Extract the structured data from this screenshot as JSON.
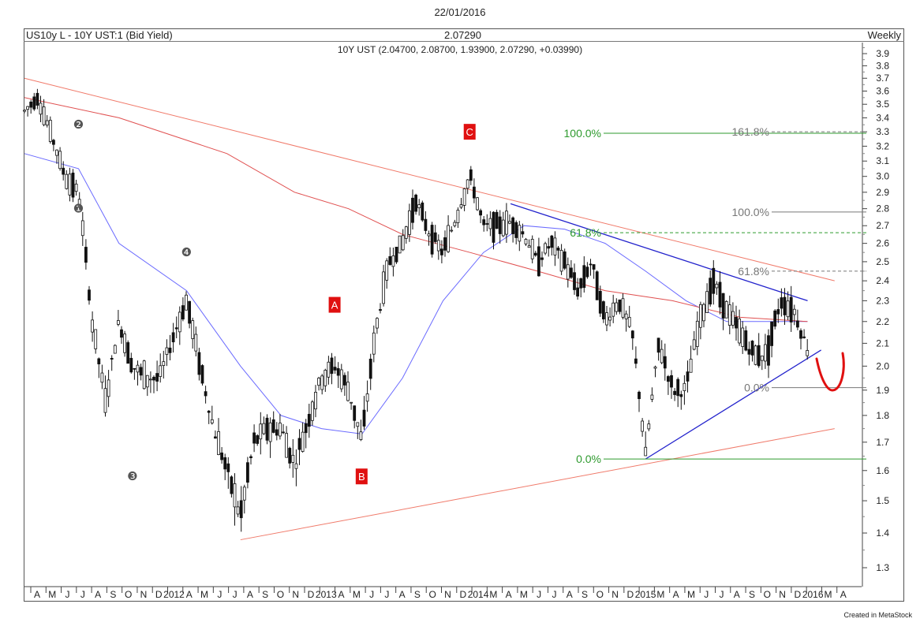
{
  "header": {
    "date": "22/01/2016",
    "instrument": "US10y L - 10Y UST:1 (Bid Yield)",
    "last": "2.07290",
    "period": "Weekly",
    "ohlc": "10Y UST (2.04700, 2.08700, 1.93900, 2.07290, +0.03990)"
  },
  "footer": {
    "credit": "Created in MetaStock"
  },
  "colors": {
    "candle": "#111111",
    "ma_fast": "#6a6aff",
    "ma_slow": "#e05050",
    "trend_red": "#f07a6a",
    "trend_blue": "#2222cc",
    "fib_green": "#2e9a2e",
    "fib_gray": "#777777",
    "marker_red": "#e01010"
  },
  "chart_data": {
    "type": "candlestick",
    "title": "US10y L - 10Y UST:1 (Bid Yield)",
    "y_axis": {
      "side": "right",
      "ticks": [
        "3.9",
        "3.8",
        "3.7",
        "3.6",
        "3.5",
        "3.4",
        "3.3",
        "3.2",
        "3.1",
        "3.0",
        "2.9",
        "2.8",
        "2.7",
        "2.6",
        "2.5",
        "2.4",
        "2.3",
        "2.2",
        "2.1",
        "2.0",
        "1.9",
        "1.8",
        "1.7",
        "1.6",
        "1.5",
        "1.4",
        "1.3"
      ],
      "scale": "log",
      "ylim": [
        1.25,
        3.95
      ]
    },
    "x_axis": {
      "labels": [
        "A",
        "M",
        "J",
        "J",
        "A",
        "S",
        "O",
        "N",
        "D",
        "2012",
        "A",
        "M",
        "J",
        "J",
        "A",
        "S",
        "O",
        "N",
        "D",
        "2013",
        "A",
        "M",
        "J",
        "J",
        "A",
        "S",
        "O",
        "N",
        "D",
        "2014",
        "M",
        "A",
        "M",
        "J",
        "J",
        "A",
        "S",
        "O",
        "N",
        "D",
        "2015",
        "M",
        "A",
        "M",
        "J",
        "J",
        "A",
        "S",
        "O",
        "N",
        "D",
        "2016",
        "M",
        "A"
      ]
    },
    "close_series": [
      {
        "date": "2011-03",
        "value": 3.45
      },
      {
        "date": "2011-04",
        "value": 3.55
      },
      {
        "date": "2011-06",
        "value": 3.0
      },
      {
        "date": "2011-07",
        "value": 2.9
      },
      {
        "date": "2011-08",
        "value": 2.2
      },
      {
        "date": "2011-09",
        "value": 1.85
      },
      {
        "date": "2011-10",
        "value": 2.2
      },
      {
        "date": "2011-11",
        "value": 2.0
      },
      {
        "date": "2011-12",
        "value": 1.95
      },
      {
        "date": "2012-01",
        "value": 1.95
      },
      {
        "date": "2012-03",
        "value": 2.3
      },
      {
        "date": "2012-04",
        "value": 2.0
      },
      {
        "date": "2012-05",
        "value": 1.75
      },
      {
        "date": "2012-06",
        "value": 1.6
      },
      {
        "date": "2012-07",
        "value": 1.45
      },
      {
        "date": "2012-08",
        "value": 1.7
      },
      {
        "date": "2012-09",
        "value": 1.75
      },
      {
        "date": "2012-10",
        "value": 1.75
      },
      {
        "date": "2012-11",
        "value": 1.62
      },
      {
        "date": "2012-12",
        "value": 1.78
      },
      {
        "date": "2013-01",
        "value": 1.95
      },
      {
        "date": "2013-02",
        "value": 2.0
      },
      {
        "date": "2013-03",
        "value": 1.9
      },
      {
        "date": "2013-04",
        "value": 1.7
      },
      {
        "date": "2013-05",
        "value": 2.15
      },
      {
        "date": "2013-06",
        "value": 2.5
      },
      {
        "date": "2013-07",
        "value": 2.6
      },
      {
        "date": "2013-08",
        "value": 2.85
      },
      {
        "date": "2013-09",
        "value": 2.65
      },
      {
        "date": "2013-10",
        "value": 2.55
      },
      {
        "date": "2013-11",
        "value": 2.75
      },
      {
        "date": "2013-12",
        "value": 3.0
      },
      {
        "date": "2014-01",
        "value": 2.7
      },
      {
        "date": "2014-02",
        "value": 2.7
      },
      {
        "date": "2014-03",
        "value": 2.72
      },
      {
        "date": "2014-04",
        "value": 2.65
      },
      {
        "date": "2014-05",
        "value": 2.5
      },
      {
        "date": "2014-06",
        "value": 2.6
      },
      {
        "date": "2014-07",
        "value": 2.5
      },
      {
        "date": "2014-08",
        "value": 2.35
      },
      {
        "date": "2014-09",
        "value": 2.5
      },
      {
        "date": "2014-10",
        "value": 2.2
      },
      {
        "date": "2014-11",
        "value": 2.3
      },
      {
        "date": "2014-12",
        "value": 2.15
      },
      {
        "date": "2015-01",
        "value": 1.65
      },
      {
        "date": "2015-02",
        "value": 2.1
      },
      {
        "date": "2015-03",
        "value": 1.9
      },
      {
        "date": "2015-04",
        "value": 1.9
      },
      {
        "date": "2015-05",
        "value": 2.2
      },
      {
        "date": "2015-06",
        "value": 2.4
      },
      {
        "date": "2015-07",
        "value": 2.25
      },
      {
        "date": "2015-08",
        "value": 2.15
      },
      {
        "date": "2015-09",
        "value": 2.05
      },
      {
        "date": "2015-10",
        "value": 2.05
      },
      {
        "date": "2015-11",
        "value": 2.3
      },
      {
        "date": "2015-12",
        "value": 2.25
      },
      {
        "date": "2016-01",
        "value": 2.07
      }
    ],
    "moving_averages": [
      {
        "color": "blue",
        "points": [
          {
            "date": "2011-03",
            "value": 3.15
          },
          {
            "date": "2011-07",
            "value": 3.05
          },
          {
            "date": "2011-10",
            "value": 2.6
          },
          {
            "date": "2012-03",
            "value": 2.35
          },
          {
            "date": "2012-07",
            "value": 2.0
          },
          {
            "date": "2012-10",
            "value": 1.8
          },
          {
            "date": "2013-01",
            "value": 1.75
          },
          {
            "date": "2013-04",
            "value": 1.73
          },
          {
            "date": "2013-07",
            "value": 1.95
          },
          {
            "date": "2013-10",
            "value": 2.3
          },
          {
            "date": "2014-01",
            "value": 2.55
          },
          {
            "date": "2014-04",
            "value": 2.7
          },
          {
            "date": "2014-07",
            "value": 2.68
          },
          {
            "date": "2014-10",
            "value": 2.6
          },
          {
            "date": "2015-01",
            "value": 2.45
          },
          {
            "date": "2015-04",
            "value": 2.3
          },
          {
            "date": "2015-07",
            "value": 2.2
          },
          {
            "date": "2015-10",
            "value": 2.2
          },
          {
            "date": "2016-01",
            "value": 2.2
          }
        ]
      },
      {
        "color": "red",
        "points": [
          {
            "date": "2011-03",
            "value": 3.55
          },
          {
            "date": "2011-10",
            "value": 3.4
          },
          {
            "date": "2012-06",
            "value": 3.15
          },
          {
            "date": "2012-11",
            "value": 2.9
          },
          {
            "date": "2013-03",
            "value": 2.8
          },
          {
            "date": "2013-07",
            "value": 2.65
          },
          {
            "date": "2013-12",
            "value": 2.55
          },
          {
            "date": "2014-05",
            "value": 2.45
          },
          {
            "date": "2014-10",
            "value": 2.35
          },
          {
            "date": "2015-03",
            "value": 2.3
          },
          {
            "date": "2015-08",
            "value": 2.22
          },
          {
            "date": "2016-01",
            "value": 2.2
          }
        ]
      }
    ],
    "trendlines": [
      {
        "color": "red",
        "from": {
          "date": "2011-03",
          "value": 3.7
        },
        "to": {
          "date": "2016-03",
          "value": 2.4
        }
      },
      {
        "color": "red",
        "from": {
          "date": "2012-07",
          "value": 1.38
        },
        "to": {
          "date": "2016-03",
          "value": 1.75
        }
      },
      {
        "color": "blue",
        "from": {
          "date": "2014-03",
          "value": 2.83
        },
        "to": {
          "date": "2016-01",
          "value": 2.3
        }
      },
      {
        "color": "blue",
        "from": {
          "date": "2015-01",
          "value": 1.64
        },
        "to": {
          "date": "2016-02",
          "value": 2.07
        }
      }
    ],
    "fibonacci": [
      {
        "label": "100.0%",
        "value": 3.29,
        "color": "green"
      },
      {
        "label": "61.8%",
        "value": 2.66,
        "color": "green"
      },
      {
        "label": "0.0%",
        "value": 1.64,
        "color": "green"
      },
      {
        "label": "161.8%",
        "value": 3.3,
        "color": "gray"
      },
      {
        "label": "100.0%",
        "value": 2.78,
        "color": "gray"
      },
      {
        "label": "61.8%",
        "value": 2.45,
        "color": "gray"
      },
      {
        "label": "0.0%",
        "value": 1.91,
        "color": "gray"
      }
    ],
    "wave_labels": [
      {
        "text": "A",
        "style": "red-square",
        "date": "2013-02",
        "value": 2.28
      },
      {
        "text": "B",
        "style": "red-square",
        "date": "2013-04",
        "value": 1.58
      },
      {
        "text": "C",
        "style": "red-square",
        "date": "2013-12",
        "value": 3.3
      },
      {
        "text": "❶",
        "style": "gray-circle",
        "date": "2011-07",
        "value": 2.8
      },
      {
        "text": "❷",
        "style": "gray-circle",
        "date": "2011-07",
        "value": 3.35
      },
      {
        "text": "❸",
        "style": "gray-circle",
        "date": "2011-11",
        "value": 1.58
      },
      {
        "text": "❹",
        "style": "gray-circle",
        "date": "2012-03",
        "value": 2.55
      }
    ]
  }
}
